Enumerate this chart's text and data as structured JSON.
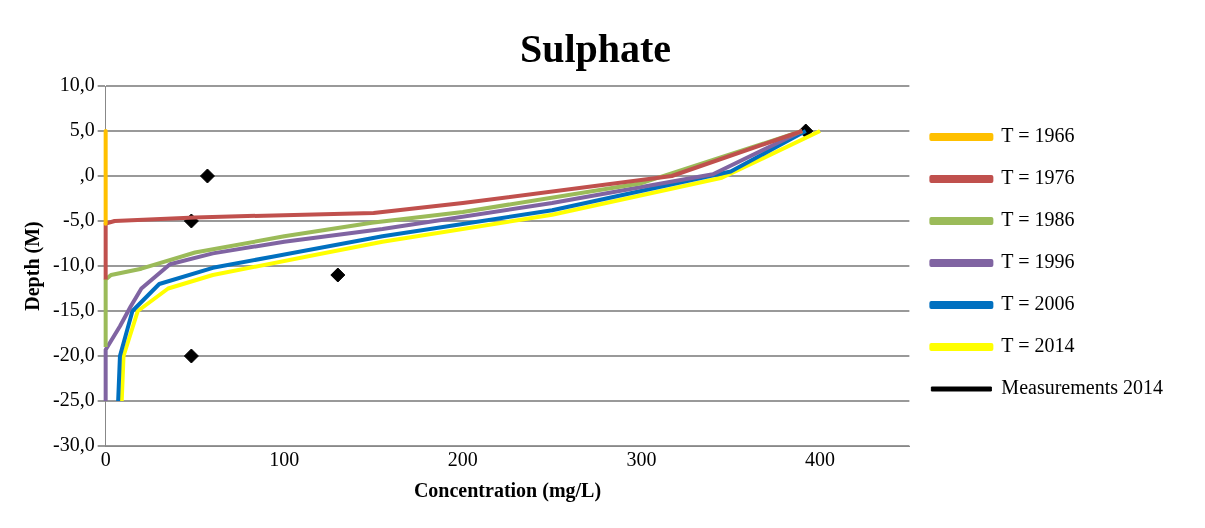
{
  "chart_data": {
    "type": "line",
    "title": "Sulphate",
    "xlabel": "Concentration (mg/L)",
    "ylabel": "Depth (M)",
    "xlim": [
      0,
      450
    ],
    "xticks": [
      0,
      100,
      200,
      300,
      400
    ],
    "ylim": [
      -30,
      10
    ],
    "yticks": [
      {
        "value": 10,
        "label": "10,0"
      },
      {
        "value": 5,
        "label": "5,0"
      },
      {
        "value": 0,
        "label": ",0"
      },
      {
        "value": -5,
        "label": "-5,0"
      },
      {
        "value": -10,
        "label": "-10,0"
      },
      {
        "value": -15,
        "label": "-15,0"
      },
      {
        "value": -20,
        "label": "-20,0"
      },
      {
        "value": -25,
        "label": "-25,0"
      },
      {
        "value": -30,
        "label": "-30,0"
      }
    ],
    "grid": "y",
    "legend": "right",
    "marker": "none",
    "series": [
      {
        "name": "T = 1966",
        "color": "#ffc000",
        "x": [
          0,
          0
        ],
        "values": [
          5,
          -5.3
        ]
      },
      {
        "name": "T = 1976",
        "color": "#c0504d",
        "x": [
          0,
          0,
          5,
          50,
          150,
          200,
          317,
          390
        ],
        "values": [
          -11.5,
          -5.3,
          -5,
          -4.6,
          -4.1,
          -3,
          0,
          5
        ]
      },
      {
        "name": "T = 1986",
        "color": "#9bbb59",
        "x": [
          0,
          0,
          3,
          20,
          50,
          100,
          149,
          200,
          300,
          390
        ],
        "values": [
          -19,
          -11.5,
          -11,
          -10.3,
          -8.5,
          -6.7,
          -5.2,
          -4,
          -0.8,
          5
        ]
      },
      {
        "name": "T = 1996",
        "color": "#8064a2",
        "x": [
          0,
          0,
          8,
          14,
          20,
          36,
          60,
          100,
          155,
          250,
          340,
          390
        ],
        "values": [
          -25,
          -19.3,
          -16.7,
          -14.5,
          -12.5,
          -9.8,
          -8.6,
          -7.3,
          -5.9,
          -3,
          0.2,
          5
        ]
      },
      {
        "name": "T = 2006",
        "color": "#0070c0",
        "x": [
          7,
          8,
          15,
          30,
          60,
          155,
          250,
          350,
          392
        ],
        "values": [
          -25,
          -20,
          -15,
          -12,
          -10.2,
          -6.7,
          -3.8,
          0.5,
          5
        ]
      },
      {
        "name": "T = 2014",
        "color": "#ffff00",
        "x": [
          9,
          10,
          18,
          35,
          60,
          155,
          250,
          345,
          400
        ],
        "values": [
          -25,
          -20,
          -15,
          -12.5,
          -11,
          -7.3,
          -4.3,
          -0.2,
          5
        ]
      },
      {
        "name": "Measurements 2014",
        "type": "scatter",
        "color": "#000000",
        "marker": "diamond",
        "x": [
          57,
          48,
          130,
          48,
          392
        ],
        "values": [
          0,
          -5,
          -11,
          -20,
          5
        ]
      }
    ]
  }
}
